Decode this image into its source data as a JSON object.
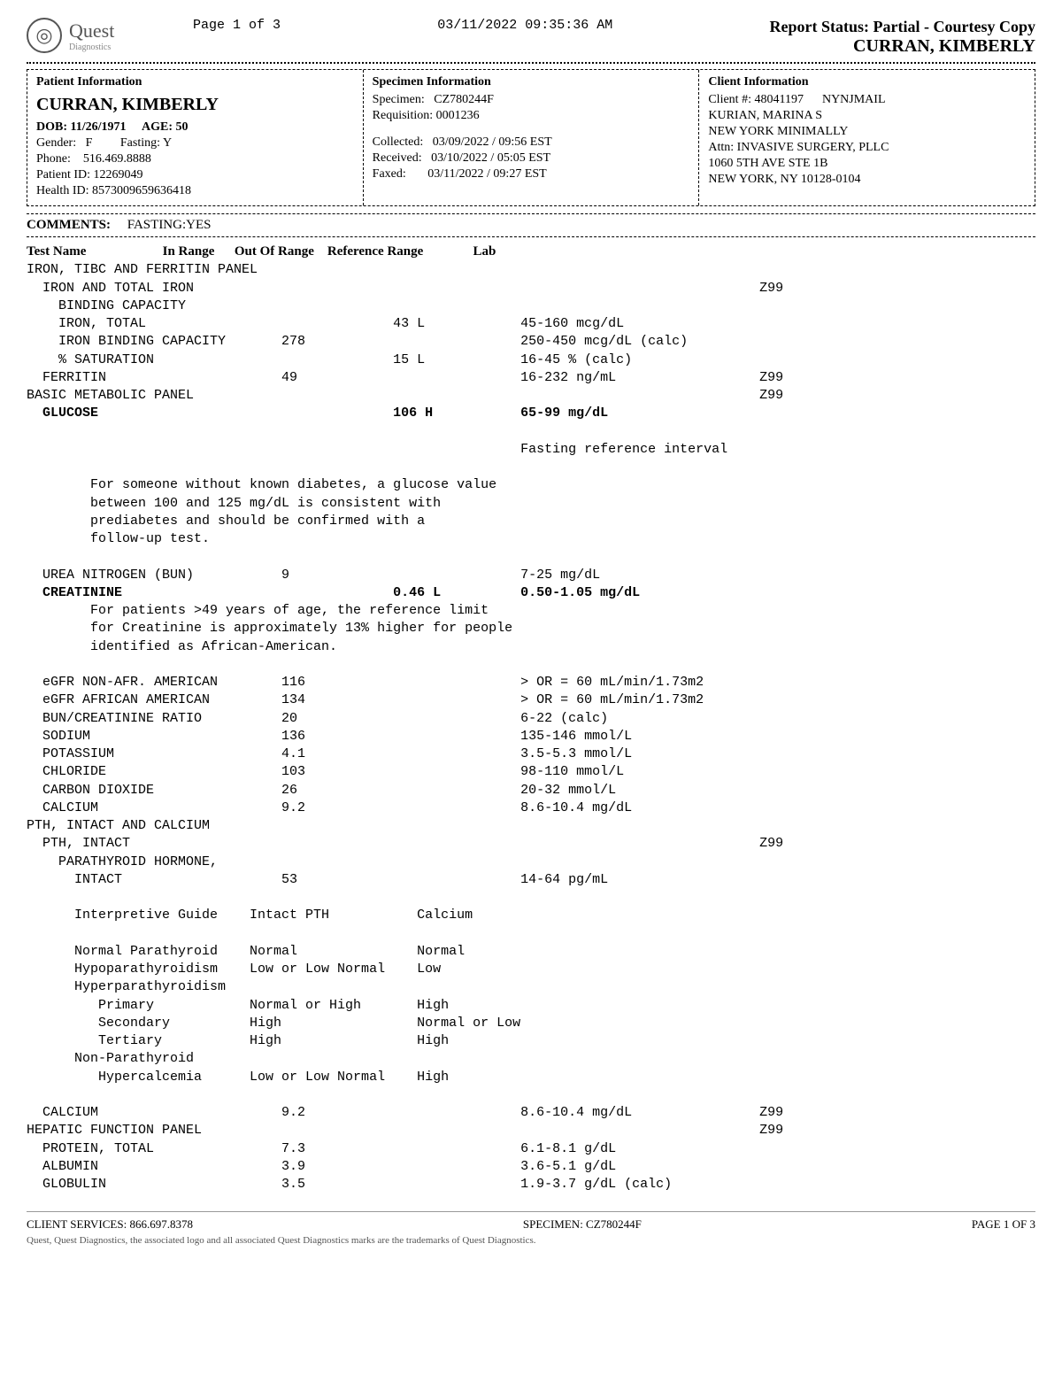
{
  "header": {
    "logo_text": "Quest",
    "logo_sub": "Diagnostics",
    "page_label": "Page 1 of 3",
    "timestamp": "03/11/2022   09:35:36 AM",
    "status": "Report Status: Partial - Courtesy Copy",
    "patient_top": "CURRAN, KIMBERLY"
  },
  "patient_box": {
    "title": "Patient Information",
    "name": "CURRAN, KIMBERLY",
    "dob_label": "DOB:",
    "dob": "11/26/1971",
    "age_label": "AGE:",
    "age": "50",
    "gender_label": "Gender:",
    "gender": "F",
    "fasting_label": "Fasting:",
    "fasting": "Y",
    "phone_label": "Phone:",
    "phone": "516.469.8888",
    "patient_id_label": "Patient ID:",
    "patient_id": "12269049",
    "health_id_label": "Health ID:",
    "health_id": "8573009659636418"
  },
  "specimen_box": {
    "title": "Specimen Information",
    "specimen_label": "Specimen:",
    "specimen": "CZ780244F",
    "requisition_label": "Requisition:",
    "requisition": "0001236",
    "collected_label": "Collected:",
    "collected": "03/09/2022 / 09:56 EST",
    "received_label": "Received:",
    "received": "03/10/2022 / 05:05 EST",
    "faxed_label": "Faxed:",
    "faxed": "03/11/2022 / 09:27 EST"
  },
  "client_box": {
    "title": "Client Information",
    "client_num_label": "Client #:",
    "client_num": "48041197",
    "route": "NYNJMAIL",
    "physician": "KURIAN, MARINA S",
    "practice1": "NEW YORK MINIMALLY",
    "practice2": "Attn: INVASIVE SURGERY, PLLC",
    "addr1": "1060 5TH AVE STE 1B",
    "addr2": "NEW YORK, NY 10128-0104"
  },
  "comments": {
    "label": "COMMENTS:",
    "value": "FASTING:YES"
  },
  "columns": {
    "test": "Test Name",
    "in": "In Range",
    "out": "Out Of Range",
    "ref": "Reference Range",
    "lab": "Lab"
  },
  "rows": [
    {
      "t": "IRON, TIBC AND FERRITIN PANEL"
    },
    {
      "t": "  IRON AND TOTAL IRON",
      "lab": "Z99"
    },
    {
      "t": "    BINDING CAPACITY"
    },
    {
      "t": "    IRON, TOTAL",
      "out": "43 L",
      "ref": "45-160 mcg/dL"
    },
    {
      "t": "    IRON BINDING CAPACITY",
      "in": "278",
      "ref": "250-450 mcg/dL (calc)"
    },
    {
      "t": "    % SATURATION",
      "out": "15 L",
      "ref": "16-45 % (calc)"
    },
    {
      "t": "  FERRITIN",
      "in": "49",
      "ref": "16-232 ng/mL",
      "lab": "Z99"
    },
    {
      "t": "BASIC METABOLIC PANEL",
      "lab": "Z99"
    },
    {
      "t": "  GLUCOSE",
      "out": "106 H",
      "ref": "65-99 mg/dL",
      "bold": true
    },
    {
      "t": ""
    },
    {
      "t": "",
      "ref": "Fasting reference interval"
    },
    {
      "t": ""
    },
    {
      "t": "        For someone without known diabetes, a glucose value"
    },
    {
      "t": "        between 100 and 125 mg/dL is consistent with"
    },
    {
      "t": "        prediabetes and should be confirmed with a"
    },
    {
      "t": "        follow-up test."
    },
    {
      "t": ""
    },
    {
      "t": "  UREA NITROGEN (BUN)",
      "in": "9",
      "ref": "7-25 mg/dL"
    },
    {
      "t": "  CREATININE",
      "out": "0.46 L",
      "ref": "0.50-1.05 mg/dL",
      "bold": true
    },
    {
      "t": "        For patients >49 years of age, the reference limit"
    },
    {
      "t": "        for Creatinine is approximately 13% higher for people"
    },
    {
      "t": "        identified as African-American."
    },
    {
      "t": ""
    },
    {
      "t": "  eGFR NON-AFR. AMERICAN",
      "in": "116",
      "ref": "> OR = 60 mL/min/1.73m2"
    },
    {
      "t": "  eGFR AFRICAN AMERICAN",
      "in": "134",
      "ref": "> OR = 60 mL/min/1.73m2"
    },
    {
      "t": "  BUN/CREATININE RATIO",
      "in": "20",
      "ref": "6-22 (calc)"
    },
    {
      "t": "  SODIUM",
      "in": "136",
      "ref": "135-146 mmol/L"
    },
    {
      "t": "  POTASSIUM",
      "in": "4.1",
      "ref": "3.5-5.3 mmol/L"
    },
    {
      "t": "  CHLORIDE",
      "in": "103",
      "ref": "98-110 mmol/L"
    },
    {
      "t": "  CARBON DIOXIDE",
      "in": "26",
      "ref": "20-32 mmol/L"
    },
    {
      "t": "  CALCIUM",
      "in": "9.2",
      "ref": "8.6-10.4 mg/dL"
    },
    {
      "t": "PTH, INTACT AND CALCIUM"
    },
    {
      "t": "  PTH, INTACT",
      "lab": "Z99"
    },
    {
      "t": "    PARATHYROID HORMONE,"
    },
    {
      "t": "      INTACT",
      "in": "53",
      "ref": "14-64 pg/mL"
    },
    {
      "t": ""
    },
    {
      "t": "      Interpretive Guide    Intact PTH           Calcium"
    },
    {
      "t": ""
    },
    {
      "t": "      Normal Parathyroid    Normal               Normal"
    },
    {
      "t": "      Hypoparathyroidism    Low or Low Normal    Low"
    },
    {
      "t": "      Hyperparathyroidism"
    },
    {
      "t": "         Primary            Normal or High       High"
    },
    {
      "t": "         Secondary          High                 Normal or Low"
    },
    {
      "t": "         Tertiary           High                 High"
    },
    {
      "t": "      Non-Parathyroid"
    },
    {
      "t": "         Hypercalcemia      Low or Low Normal    High"
    },
    {
      "t": ""
    },
    {
      "t": "  CALCIUM",
      "in": "9.2",
      "ref": "8.6-10.4 mg/dL",
      "lab": "Z99"
    },
    {
      "t": "HEPATIC FUNCTION PANEL",
      "lab": "Z99"
    },
    {
      "t": "  PROTEIN, TOTAL",
      "in": "7.3",
      "ref": "6.1-8.1 g/dL"
    },
    {
      "t": "  ALBUMIN",
      "in": "3.9",
      "ref": "3.6-5.1 g/dL"
    },
    {
      "t": "  GLOBULIN",
      "in": "3.5",
      "ref": "1.9-3.7 g/dL (calc)"
    }
  ],
  "footer": {
    "left": "CLIENT SERVICES: 866.697.8378",
    "center": "SPECIMEN: CZ780244F",
    "right": "PAGE 1 OF 3",
    "disclaimer": "Quest, Quest Diagnostics, the associated logo and all associated Quest Diagnostics marks are the trademarks of Quest Diagnostics."
  }
}
